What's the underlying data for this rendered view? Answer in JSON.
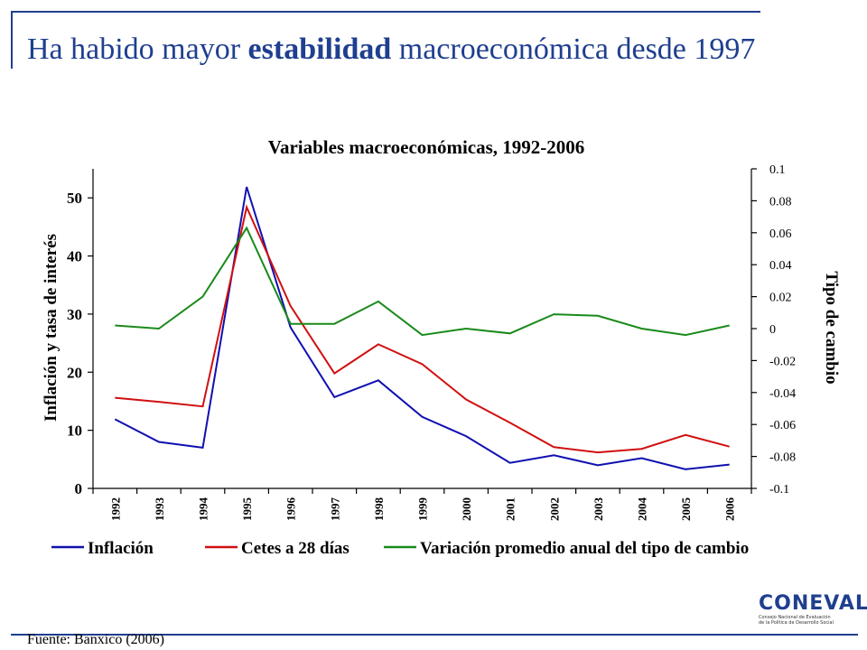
{
  "slide": {
    "title_parts": [
      "Ha habido mayor ",
      "estabilidad",
      " macroeconómica desde 1997"
    ],
    "source": "Fuente: Banxico (2006)",
    "logo": {
      "word": "CONEVAL",
      "subtitle_lines": [
        "Consejo Nacional de Evaluación",
        "de la Política de Desarrollo Social"
      ]
    }
  },
  "chart_data": {
    "type": "line",
    "title": "Variables macroeconómicas, 1992-2006",
    "ylabel_left": "Inflación y tasa de interés",
    "ylabel_right": "Tipo de cambio",
    "categories": [
      "1992",
      "1993",
      "1994",
      "1995",
      "1996",
      "1997",
      "1998",
      "1999",
      "2000",
      "2001",
      "2002",
      "2003",
      "2004",
      "2005",
      "2006"
    ],
    "ylim_left": [
      0,
      55
    ],
    "yticks_left": [
      0,
      10,
      20,
      30,
      40,
      50
    ],
    "ylim_right": [
      -0.1,
      0.1
    ],
    "yticks_right": [
      "0.1",
      "0.08",
      "0.06",
      "0.04",
      "0.02",
      "0",
      "-0.02",
      "-0.04",
      "-0.06",
      "-0.08",
      "-0.1"
    ],
    "legend_position": "bottom",
    "series": [
      {
        "name": "Inflación",
        "axis": "left",
        "color": "#1010b0",
        "values": [
          11.9,
          8.0,
          7.0,
          51.9,
          27.7,
          15.7,
          18.6,
          12.3,
          9.0,
          4.4,
          5.7,
          4.0,
          5.2,
          3.3,
          4.1
        ]
      },
      {
        "name": "Cetes a 28 días",
        "axis": "left",
        "color": "#d01010",
        "values": [
          15.6,
          14.9,
          14.1,
          48.4,
          31.4,
          19.8,
          24.8,
          21.4,
          15.3,
          11.3,
          7.1,
          6.2,
          6.8,
          9.2,
          7.2
        ]
      },
      {
        "name": "Variación promedio anual del tipo de cambio",
        "axis": "right",
        "color": "#1a8a1a",
        "values": [
          0.002,
          0.0,
          0.02,
          0.063,
          0.003,
          0.003,
          0.017,
          -0.004,
          0.0,
          -0.003,
          0.009,
          0.008,
          0.0,
          -0.004,
          0.002
        ]
      }
    ]
  }
}
